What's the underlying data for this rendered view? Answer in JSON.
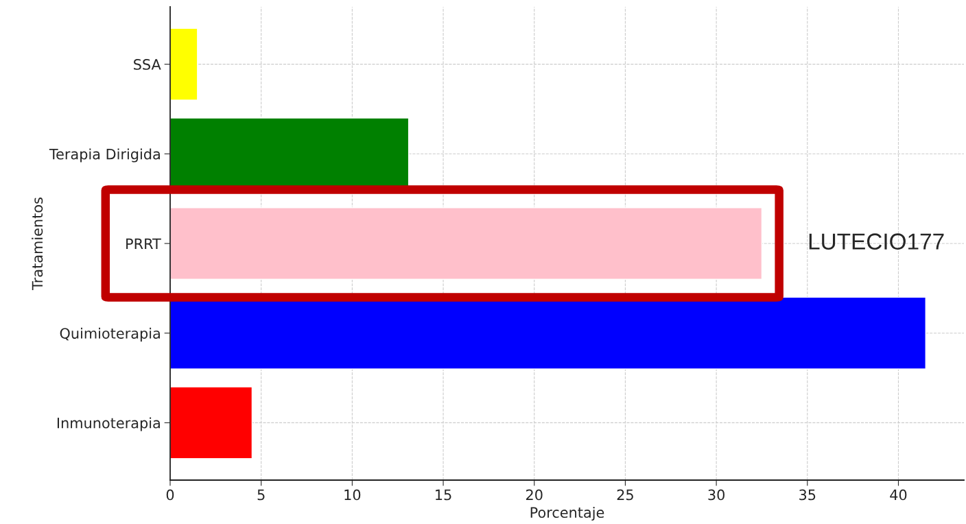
{
  "chart_data": {
    "type": "bar",
    "orientation": "horizontal",
    "xlabel": "Porcentaje",
    "ylabel": "Tratamientos",
    "categories": [
      "SSA",
      "Terapia Dirigida",
      "PRRT",
      "Quimioterapia",
      "Inmunoterapia"
    ],
    "values": [
      1.5,
      13.1,
      32.5,
      41.5,
      4.5
    ],
    "colors": [
      "#ffff00",
      "#008000",
      "#ffc0cb",
      "#0000ff",
      "#ff0000"
    ],
    "xlim": [
      0,
      43.6
    ],
    "xticks": [
      0,
      5,
      10,
      15,
      20,
      25,
      30,
      35,
      40
    ],
    "grid": true,
    "annotations": [
      "LUTECIO177"
    ]
  }
}
